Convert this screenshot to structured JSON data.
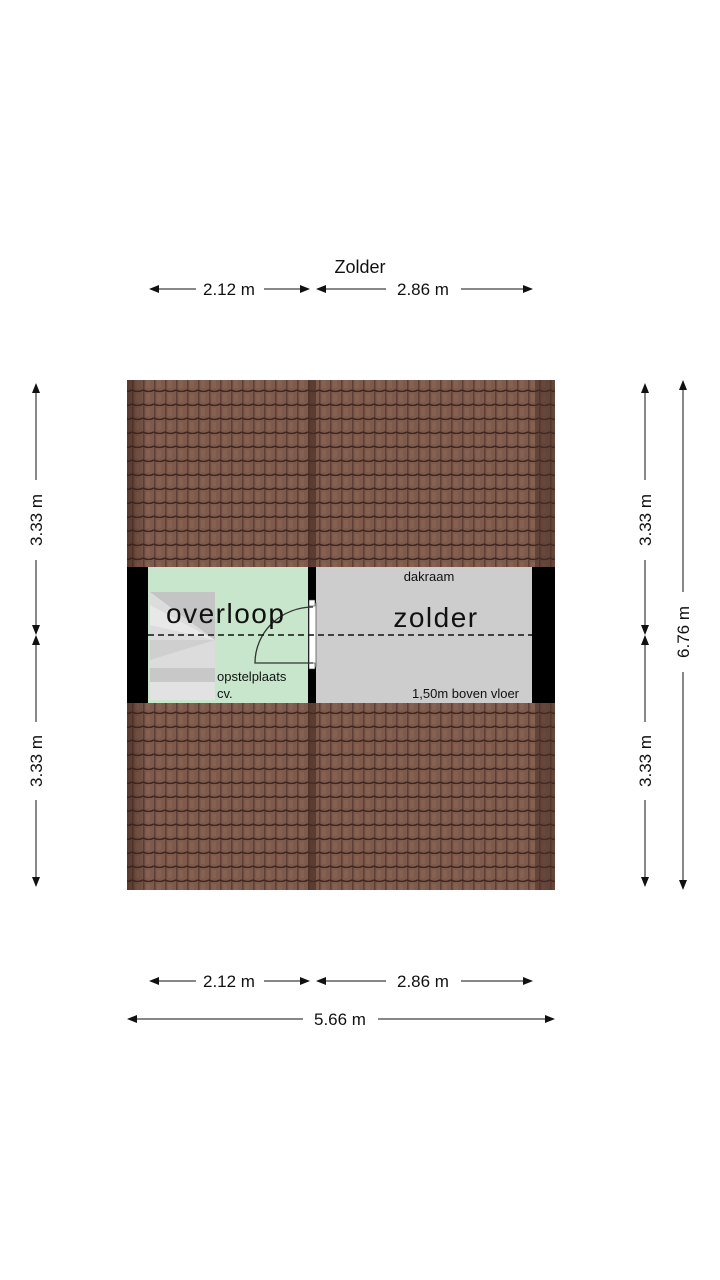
{
  "title": "Zolder",
  "rooms": {
    "overloop": "overloop",
    "zolder": "zolder",
    "dakraam": "dakraam",
    "opstelplaats_line1": "opstelplaats",
    "opstelplaats_line2": "cv.",
    "boven_vloer": "1,50m boven vloer"
  },
  "dimensions": {
    "top_left": "2.12 m",
    "top_right": "2.86 m",
    "bottom_left": "2.12 m",
    "bottom_right": "2.86 m",
    "bottom_total": "5.66 m",
    "left_upper": "3.33 m",
    "left_lower": "3.33 m",
    "right_upper": "3.33 m",
    "right_lower": "3.33 m",
    "right_total": "6.76 m"
  },
  "colors": {
    "roof": "#7d5a4c",
    "overloop": "#c8e6cc",
    "zolder": "#cdcdcd",
    "wall": "#000000"
  }
}
